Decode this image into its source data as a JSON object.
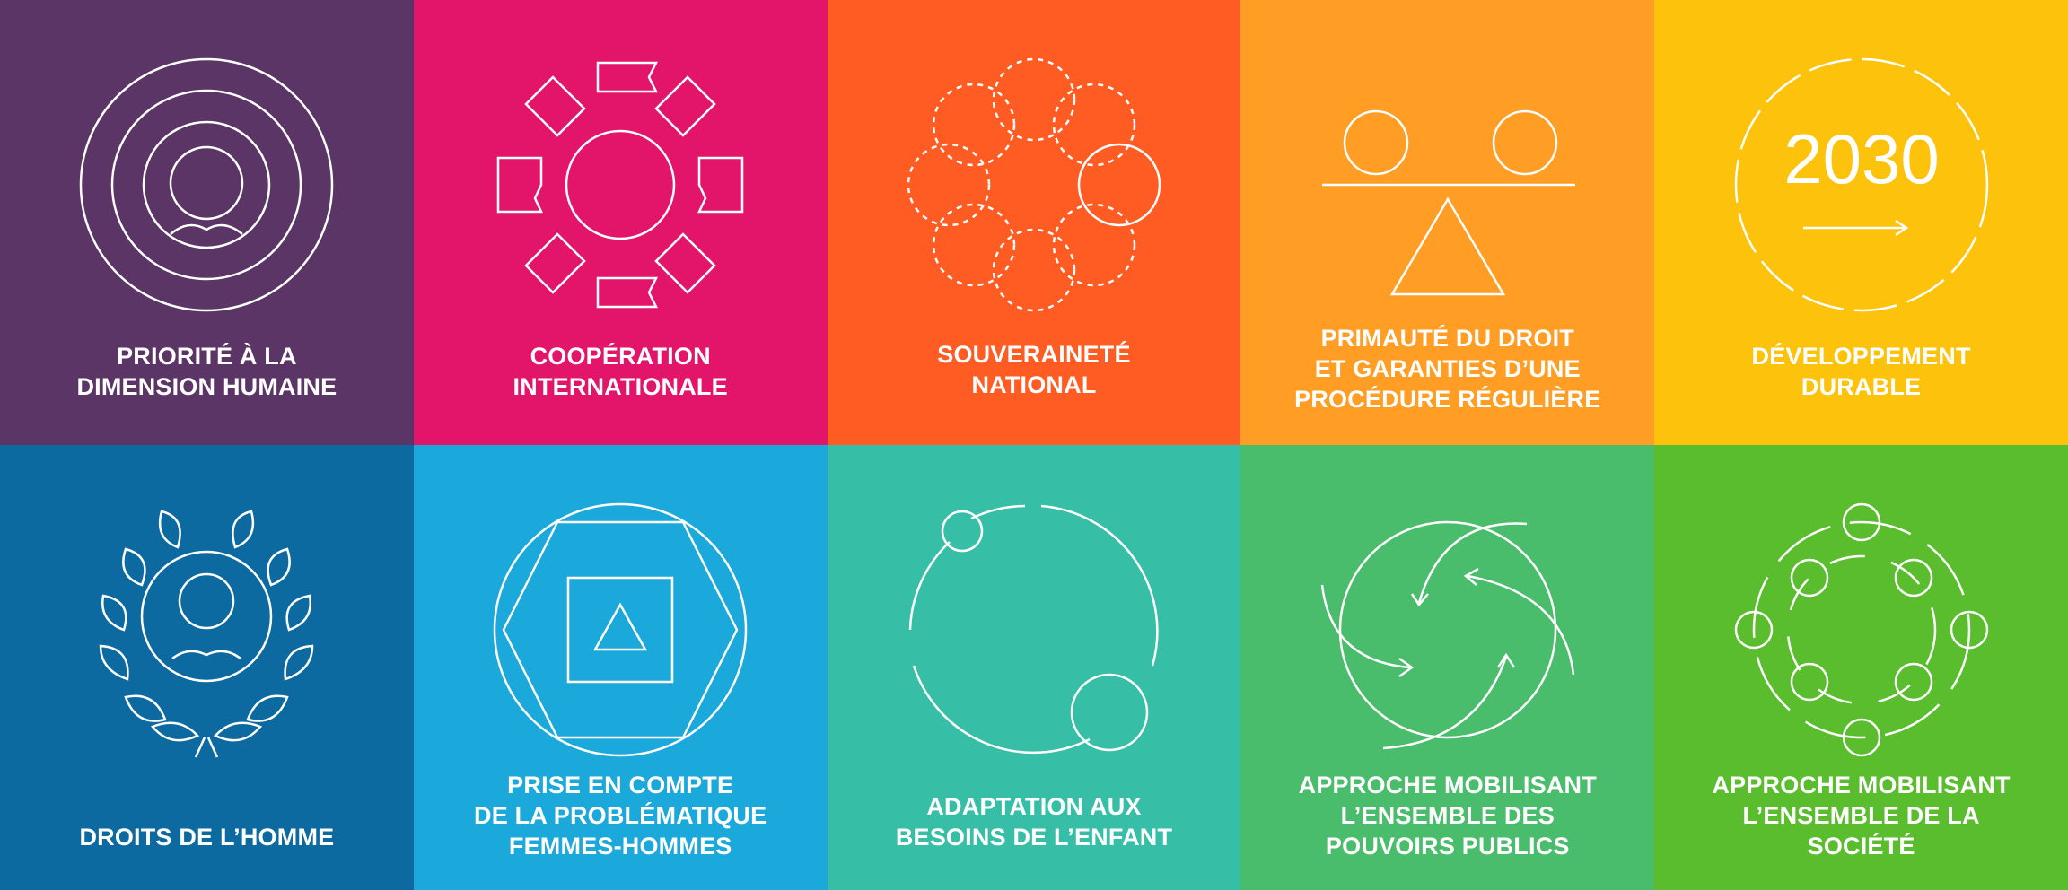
{
  "tiles": [
    {
      "id": "human-centred",
      "color": "#5a3565",
      "icon": "person-target-icon",
      "lines": [
        "PRIORITÉ À LA",
        "DIMENSION HUMAINE"
      ]
    },
    {
      "id": "international-cooperation",
      "color": "#e2156b",
      "icon": "flags-circle-icon",
      "lines": [
        "COOPÉRATION",
        "INTERNATIONALE"
      ]
    },
    {
      "id": "national-sovereignty",
      "color": "#ff5c24",
      "icon": "circles-ring-icon",
      "lines": [
        "SOUVERAINETÉ",
        "NATIONAL"
      ]
    },
    {
      "id": "rule-of-law",
      "color": "#ff9d24",
      "icon": "balance-scale-icon",
      "lines": [
        "PRIMAUTÉ DU DROIT",
        "ET GARANTIES D’UNE",
        "PROCÉDURE RÉGULIÈRE"
      ]
    },
    {
      "id": "sustainable-development",
      "color": "#fdc20b",
      "icon": "2030-arrow-icon",
      "icon_text": "2030",
      "lines": [
        "DÉVELOPPEMENT",
        "DURABLE"
      ]
    },
    {
      "id": "human-rights",
      "color": "#0c6aa0",
      "icon": "laurel-person-icon",
      "lines": [
        "DROITS DE L’HOMME"
      ]
    },
    {
      "id": "gender-responsive",
      "color": "#1ba8da",
      "icon": "nested-shapes-icon",
      "lines": [
        "PRISE EN COMPTE",
        "DE LA PROBLÉMATIQUE",
        "FEMMES-HOMMES"
      ]
    },
    {
      "id": "child-sensitive",
      "color": "#36bfa6",
      "icon": "orbit-circles-icon",
      "lines": [
        "ADAPTATION AUX",
        "BESOINS DE L’ENFANT"
      ]
    },
    {
      "id": "whole-of-government",
      "color": "#4abd6c",
      "icon": "cycle-arrows-icon",
      "lines": [
        "APPROCHE MOBILISANT",
        "L’ENSEMBLE DES",
        "POUVOIRS PUBLICS"
      ]
    },
    {
      "id": "whole-of-society",
      "color": "#59bd2d",
      "icon": "people-network-icon",
      "lines": [
        "APPROCHE MOBILISANT",
        "L’ENSEMBLE DE LA",
        "SOCIÉTÉ"
      ]
    }
  ]
}
